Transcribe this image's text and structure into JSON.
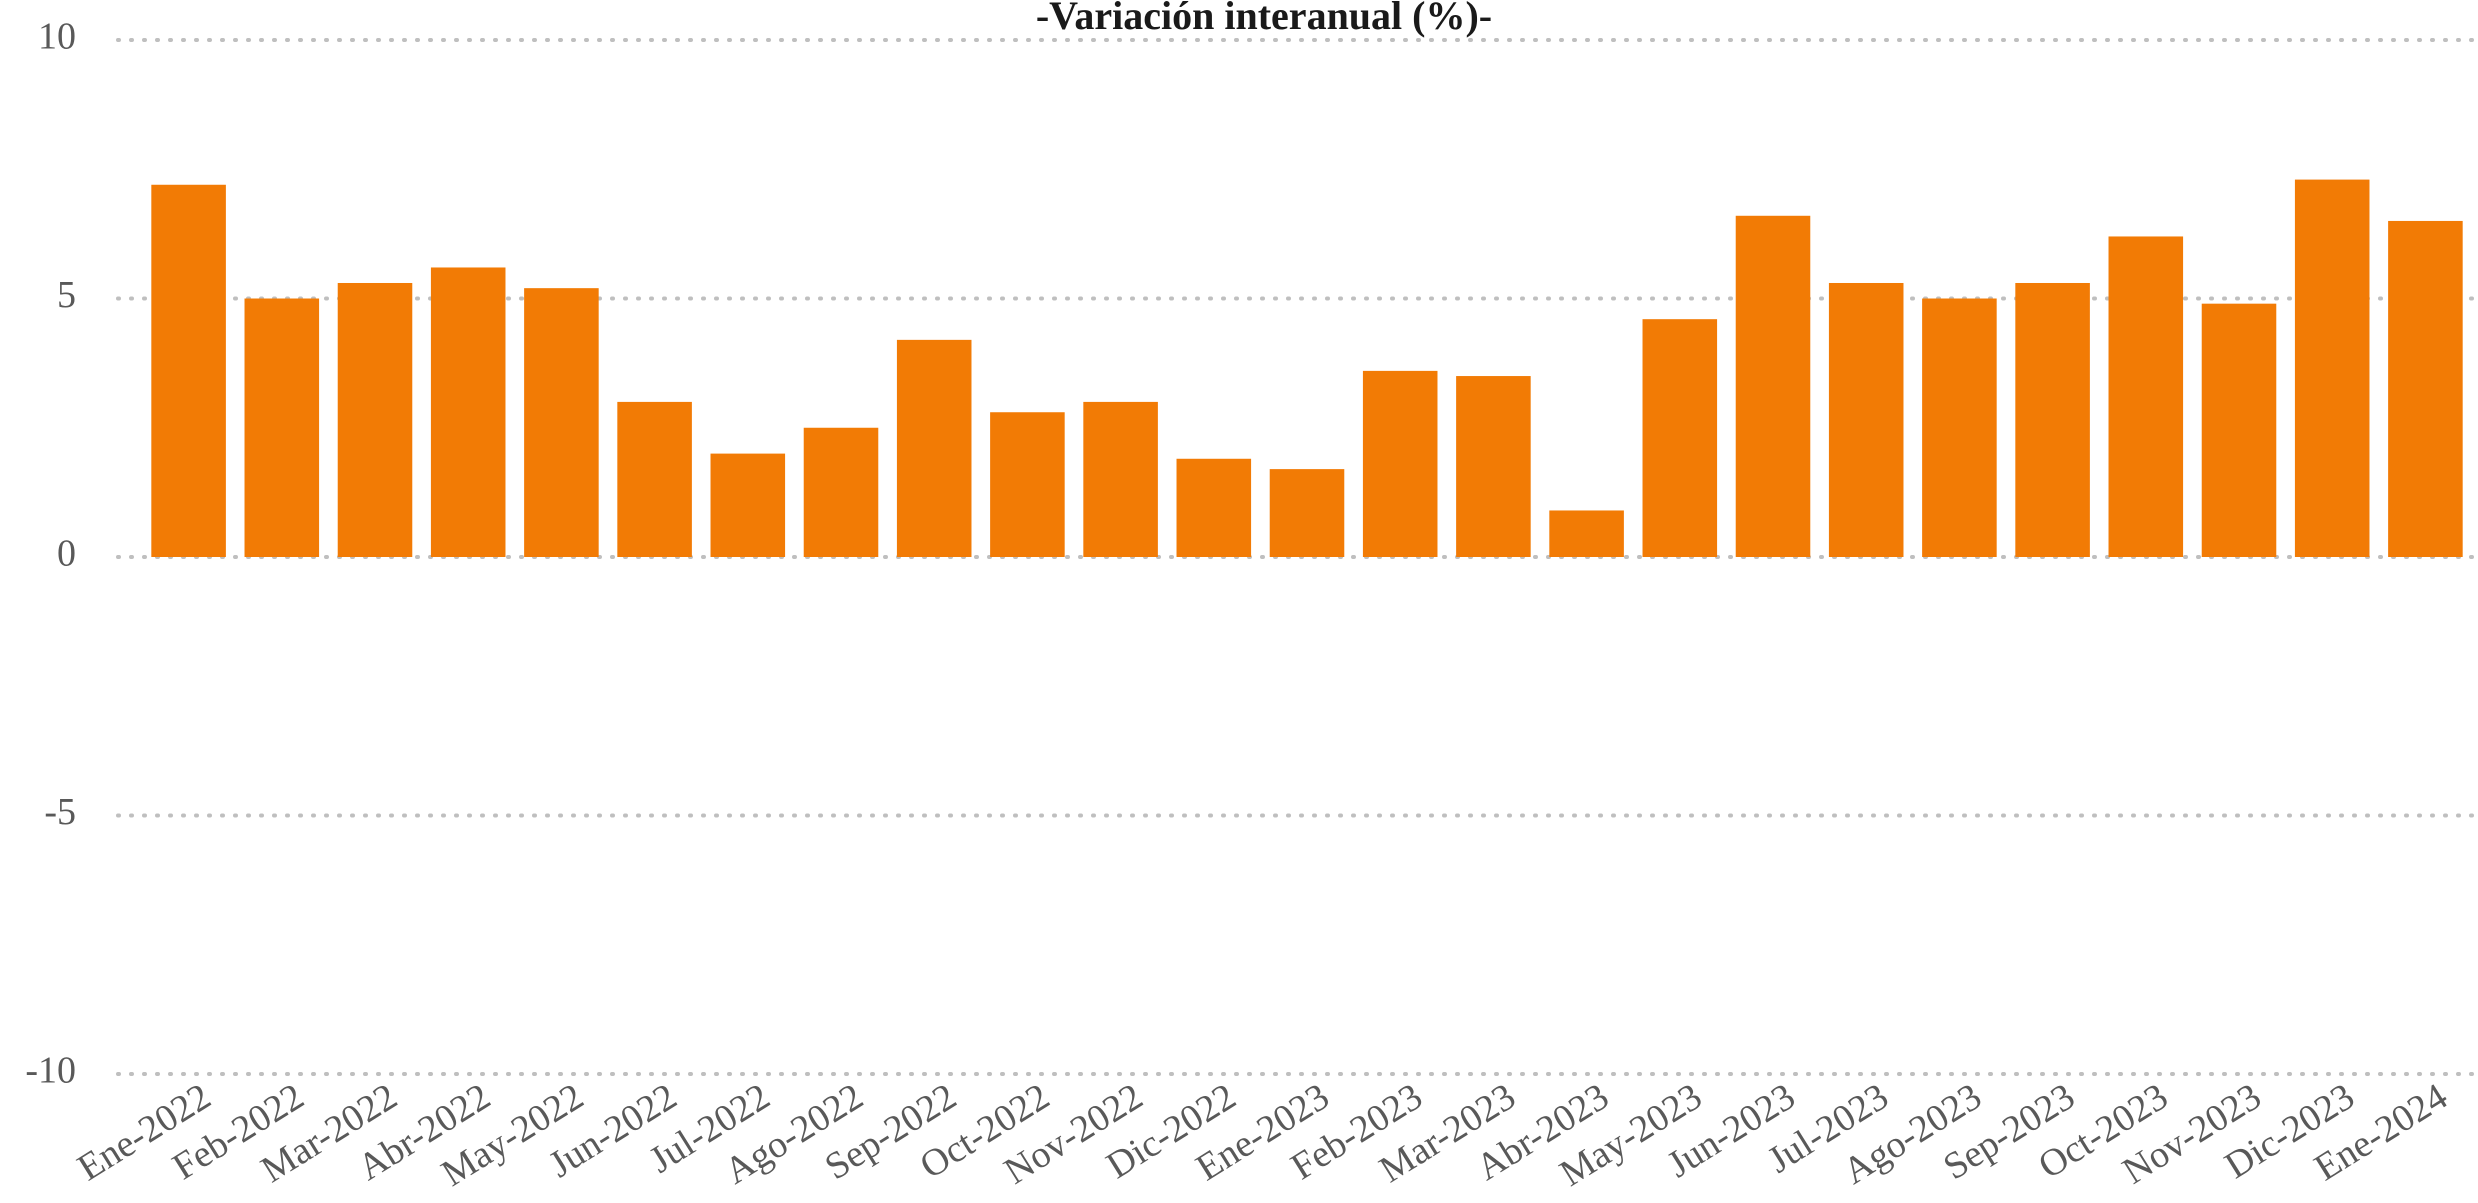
{
  "chart_data": {
    "type": "bar",
    "title": "-Variación interanual (%)-",
    "categories": [
      "Ene-2022",
      "Feb-2022",
      "Mar-2022",
      "Abr-2022",
      "May-2022",
      "Jun-2022",
      "Jul-2022",
      "Ago-2022",
      "Sep-2022",
      "Oct-2022",
      "Nov-2022",
      "Dic-2022",
      "Ene-2023",
      "Feb-2023",
      "Mar-2023",
      "Abr-2023",
      "May-2023",
      "Jun-2023",
      "Jul-2023",
      "Ago-2023",
      "Sep-2023",
      "Oct-2023",
      "Nov-2023",
      "Dic-2023",
      "Ene-2024"
    ],
    "values": [
      7.2,
      5.0,
      5.3,
      5.6,
      5.2,
      3.0,
      2.0,
      2.5,
      4.2,
      2.8,
      3.0,
      1.9,
      1.7,
      3.6,
      3.5,
      0.9,
      4.6,
      6.6,
      5.3,
      5.0,
      5.3,
      6.2,
      4.9,
      7.3,
      6.5
    ],
    "color": "#f27b05",
    "ylim": [
      -10,
      10
    ],
    "yticks": [
      -10,
      -5,
      0,
      5,
      10
    ],
    "grid": true
  }
}
